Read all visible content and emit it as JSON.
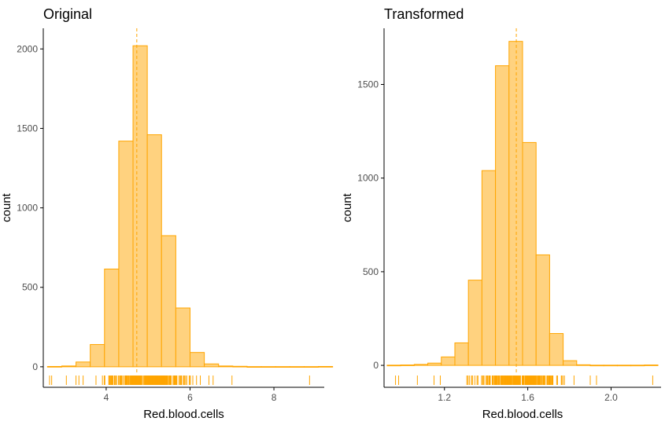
{
  "chart_data": [
    {
      "type": "bar",
      "title": "Original",
      "xlabel": "Red.blood.cells",
      "ylabel": "count",
      "xlim": [
        2.5,
        9.2
      ],
      "ylim": [
        -50,
        2130
      ],
      "xticks": [
        4,
        6,
        8
      ],
      "yticks": [
        0,
        500,
        1000,
        1500,
        2000
      ],
      "mean_line": 4.73,
      "bin_width": 0.34,
      "bins_start": [
        2.6,
        2.94,
        3.28,
        3.62,
        3.96,
        4.3,
        4.64,
        4.98,
        5.32,
        5.66,
        6.0,
        6.34,
        6.68,
        7.02,
        7.36,
        7.7,
        8.04,
        8.38,
        8.72,
        9.06
      ],
      "values": [
        2,
        5,
        30,
        140,
        615,
        1420,
        2020,
        1460,
        825,
        370,
        90,
        18,
        5,
        3,
        1,
        1,
        1,
        1,
        1,
        2
      ],
      "rug": {
        "dense_range": [
          3.62,
          6.4
        ],
        "outliers": [
          2.65,
          2.7,
          3.05,
          3.28,
          3.35,
          3.45,
          6.45,
          6.55,
          7.0,
          8.85
        ]
      }
    },
    {
      "type": "bar",
      "title": "Transformed",
      "xlabel": "Red.blood.cells",
      "ylabel": "count",
      "xlim": [
        0.91,
        2.24
      ],
      "ylim": [
        -50,
        1800
      ],
      "xticks": [
        "1.2",
        "1.6",
        "2.0"
      ],
      "yticks": [
        0,
        500,
        1000,
        1500
      ],
      "mean_line": 1.545,
      "bin_width": 0.065,
      "bins_start": [
        0.925,
        0.99,
        1.055,
        1.12,
        1.185,
        1.25,
        1.315,
        1.38,
        1.445,
        1.51,
        1.575,
        1.64,
        1.705,
        1.77,
        1.835,
        1.9,
        1.965,
        2.03,
        2.095,
        2.16
      ],
      "values": [
        1,
        2,
        5,
        12,
        45,
        120,
        455,
        1040,
        1600,
        1730,
        1190,
        590,
        170,
        25,
        3,
        1,
        1,
        1,
        1,
        2
      ],
      "rug": {
        "dense_range": [
          1.23,
          1.87
        ],
        "outliers": [
          0.965,
          0.98,
          1.07,
          1.15,
          1.18,
          1.9,
          1.93,
          2.2
        ]
      }
    }
  ],
  "colors": {
    "fill": "#FFD27F",
    "stroke": "#FFA500",
    "axis": "#000000",
    "tick_text": "#4d4d4d"
  }
}
